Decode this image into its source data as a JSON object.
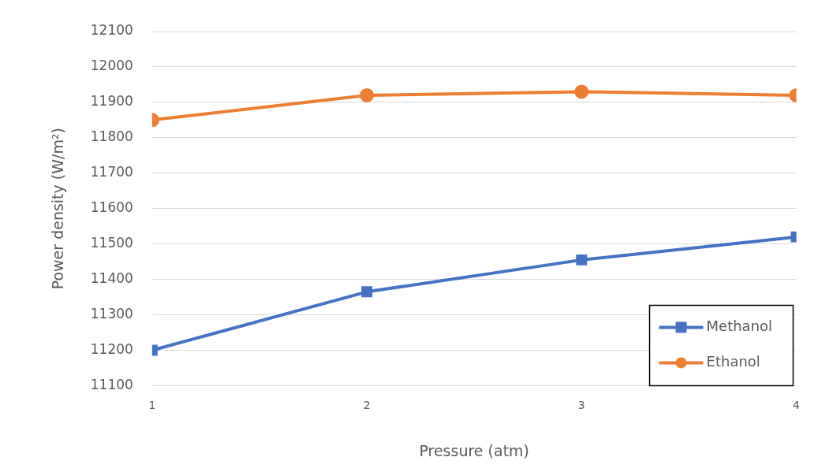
{
  "chart_data": {
    "type": "line",
    "xlabel": "Pressure (atm)",
    "ylabel": "Power density (W/m²)",
    "x": [
      1,
      2,
      3,
      4
    ],
    "xlim": [
      1,
      4
    ],
    "xticks": [
      1,
      2,
      3,
      4
    ],
    "ylim": [
      11100,
      12100
    ],
    "yticks": [
      11100,
      11200,
      11300,
      11400,
      11500,
      11600,
      11700,
      11800,
      11900,
      12000,
      12100
    ],
    "grid": "y",
    "legend": "bottom right",
    "line_style": "solid",
    "series": [
      {
        "name": "Methanol",
        "color": "#4472c4",
        "marker": "square",
        "values": [
          11200,
          11365,
          11455,
          11520
        ]
      },
      {
        "name": "Ethanol",
        "color": "#ed7d31",
        "marker": "circle",
        "values": [
          11850,
          11920,
          11930,
          11920
        ]
      }
    ]
  }
}
